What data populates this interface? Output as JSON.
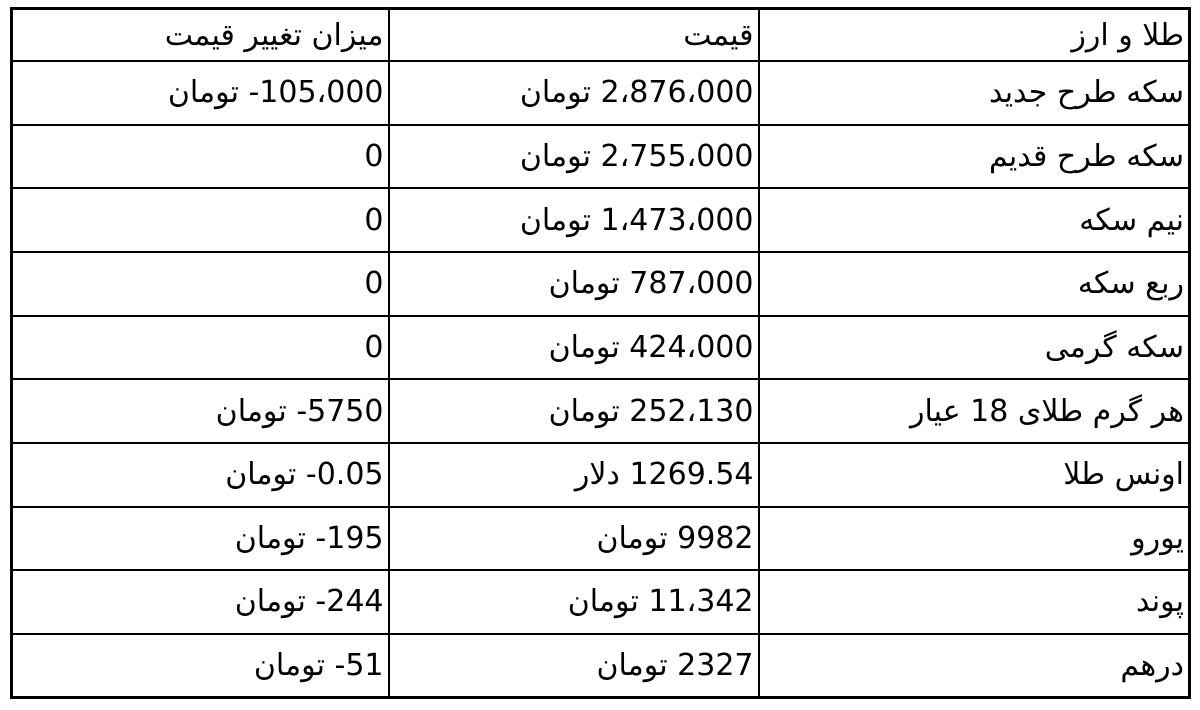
{
  "chart_data": {
    "type": "table",
    "title": "",
    "columns": [
      "طلا و ارز",
      "قیمت",
      "میزان تغییر قیمت"
    ],
    "rows": [
      [
        "سکه طرح جدید",
        "2،876،000 تومان",
        "-105،000 تومان"
      ],
      [
        "سکه طرح قدیم",
        "2،755،000 تومان",
        "0"
      ],
      [
        "نیم سکه",
        "1،473،000 تومان",
        "0"
      ],
      [
        "ربع سکه",
        "787،000 تومان",
        "0"
      ],
      [
        "سکه گرمی",
        "424،000 تومان",
        "0"
      ],
      [
        "هر گرم طلای 18 عیار",
        "252،130 تومان",
        "-5750 تومان"
      ],
      [
        "اونس طلا",
        "1269.54 دلار",
        "-0.05 تومان"
      ],
      [
        "یورو",
        "9982 تومان",
        "-195 تومان"
      ],
      [
        "پوند",
        "11،342 تومان",
        "-244 تومان"
      ],
      [
        "درهم",
        "2327 تومان",
        "-51 تومان"
      ]
    ],
    "layout_hints": {
      "direction": "rtl",
      "grid": "on",
      "text_align": "right"
    }
  },
  "colors": {
    "border": "#000000",
    "text": "#000000",
    "background": "#ffffff"
  },
  "table": {
    "headers": {
      "asset": "طلا و ارز",
      "price": "قیمت",
      "change": "میزان تغییر قیمت"
    },
    "rows": [
      {
        "name": "سکه طرح جدید",
        "price_amount": "2،876،000",
        "price_unit": "تومان",
        "change_amount": "-105،000",
        "change_unit": "تومان"
      },
      {
        "name": "سکه طرح قدیم",
        "price_amount": "2،755،000",
        "price_unit": "تومان",
        "change_amount": "0",
        "change_unit": ""
      },
      {
        "name": "نیم سکه",
        "price_amount": "1،473،000",
        "price_unit": "تومان",
        "change_amount": "0",
        "change_unit": ""
      },
      {
        "name": "ربع سکه",
        "price_amount": "787،000",
        "price_unit": "تومان",
        "change_amount": "0",
        "change_unit": ""
      },
      {
        "name": "سکه گرمی",
        "price_amount": "424،000",
        "price_unit": "تومان",
        "change_amount": "0",
        "change_unit": ""
      },
      {
        "name": "هر گرم طلای 18 عیار",
        "price_amount": "252،130",
        "price_unit": "تومان",
        "change_amount": "-5750",
        "change_unit": "تومان"
      },
      {
        "name": "اونس طلا",
        "price_amount": "1269.54",
        "price_unit": "دلار",
        "change_amount": "-0.05",
        "change_unit": "تومان"
      },
      {
        "name": "یورو",
        "price_amount": "9982",
        "price_unit": "تومان",
        "change_amount": "-195",
        "change_unit": "تومان"
      },
      {
        "name": "پوند",
        "price_amount": "11،342",
        "price_unit": "تومان",
        "change_amount": "-244",
        "change_unit": "تومان"
      },
      {
        "name": "درهم",
        "price_amount": "2327",
        "price_unit": "تومان",
        "change_amount": "-51",
        "change_unit": "تومان"
      }
    ]
  }
}
